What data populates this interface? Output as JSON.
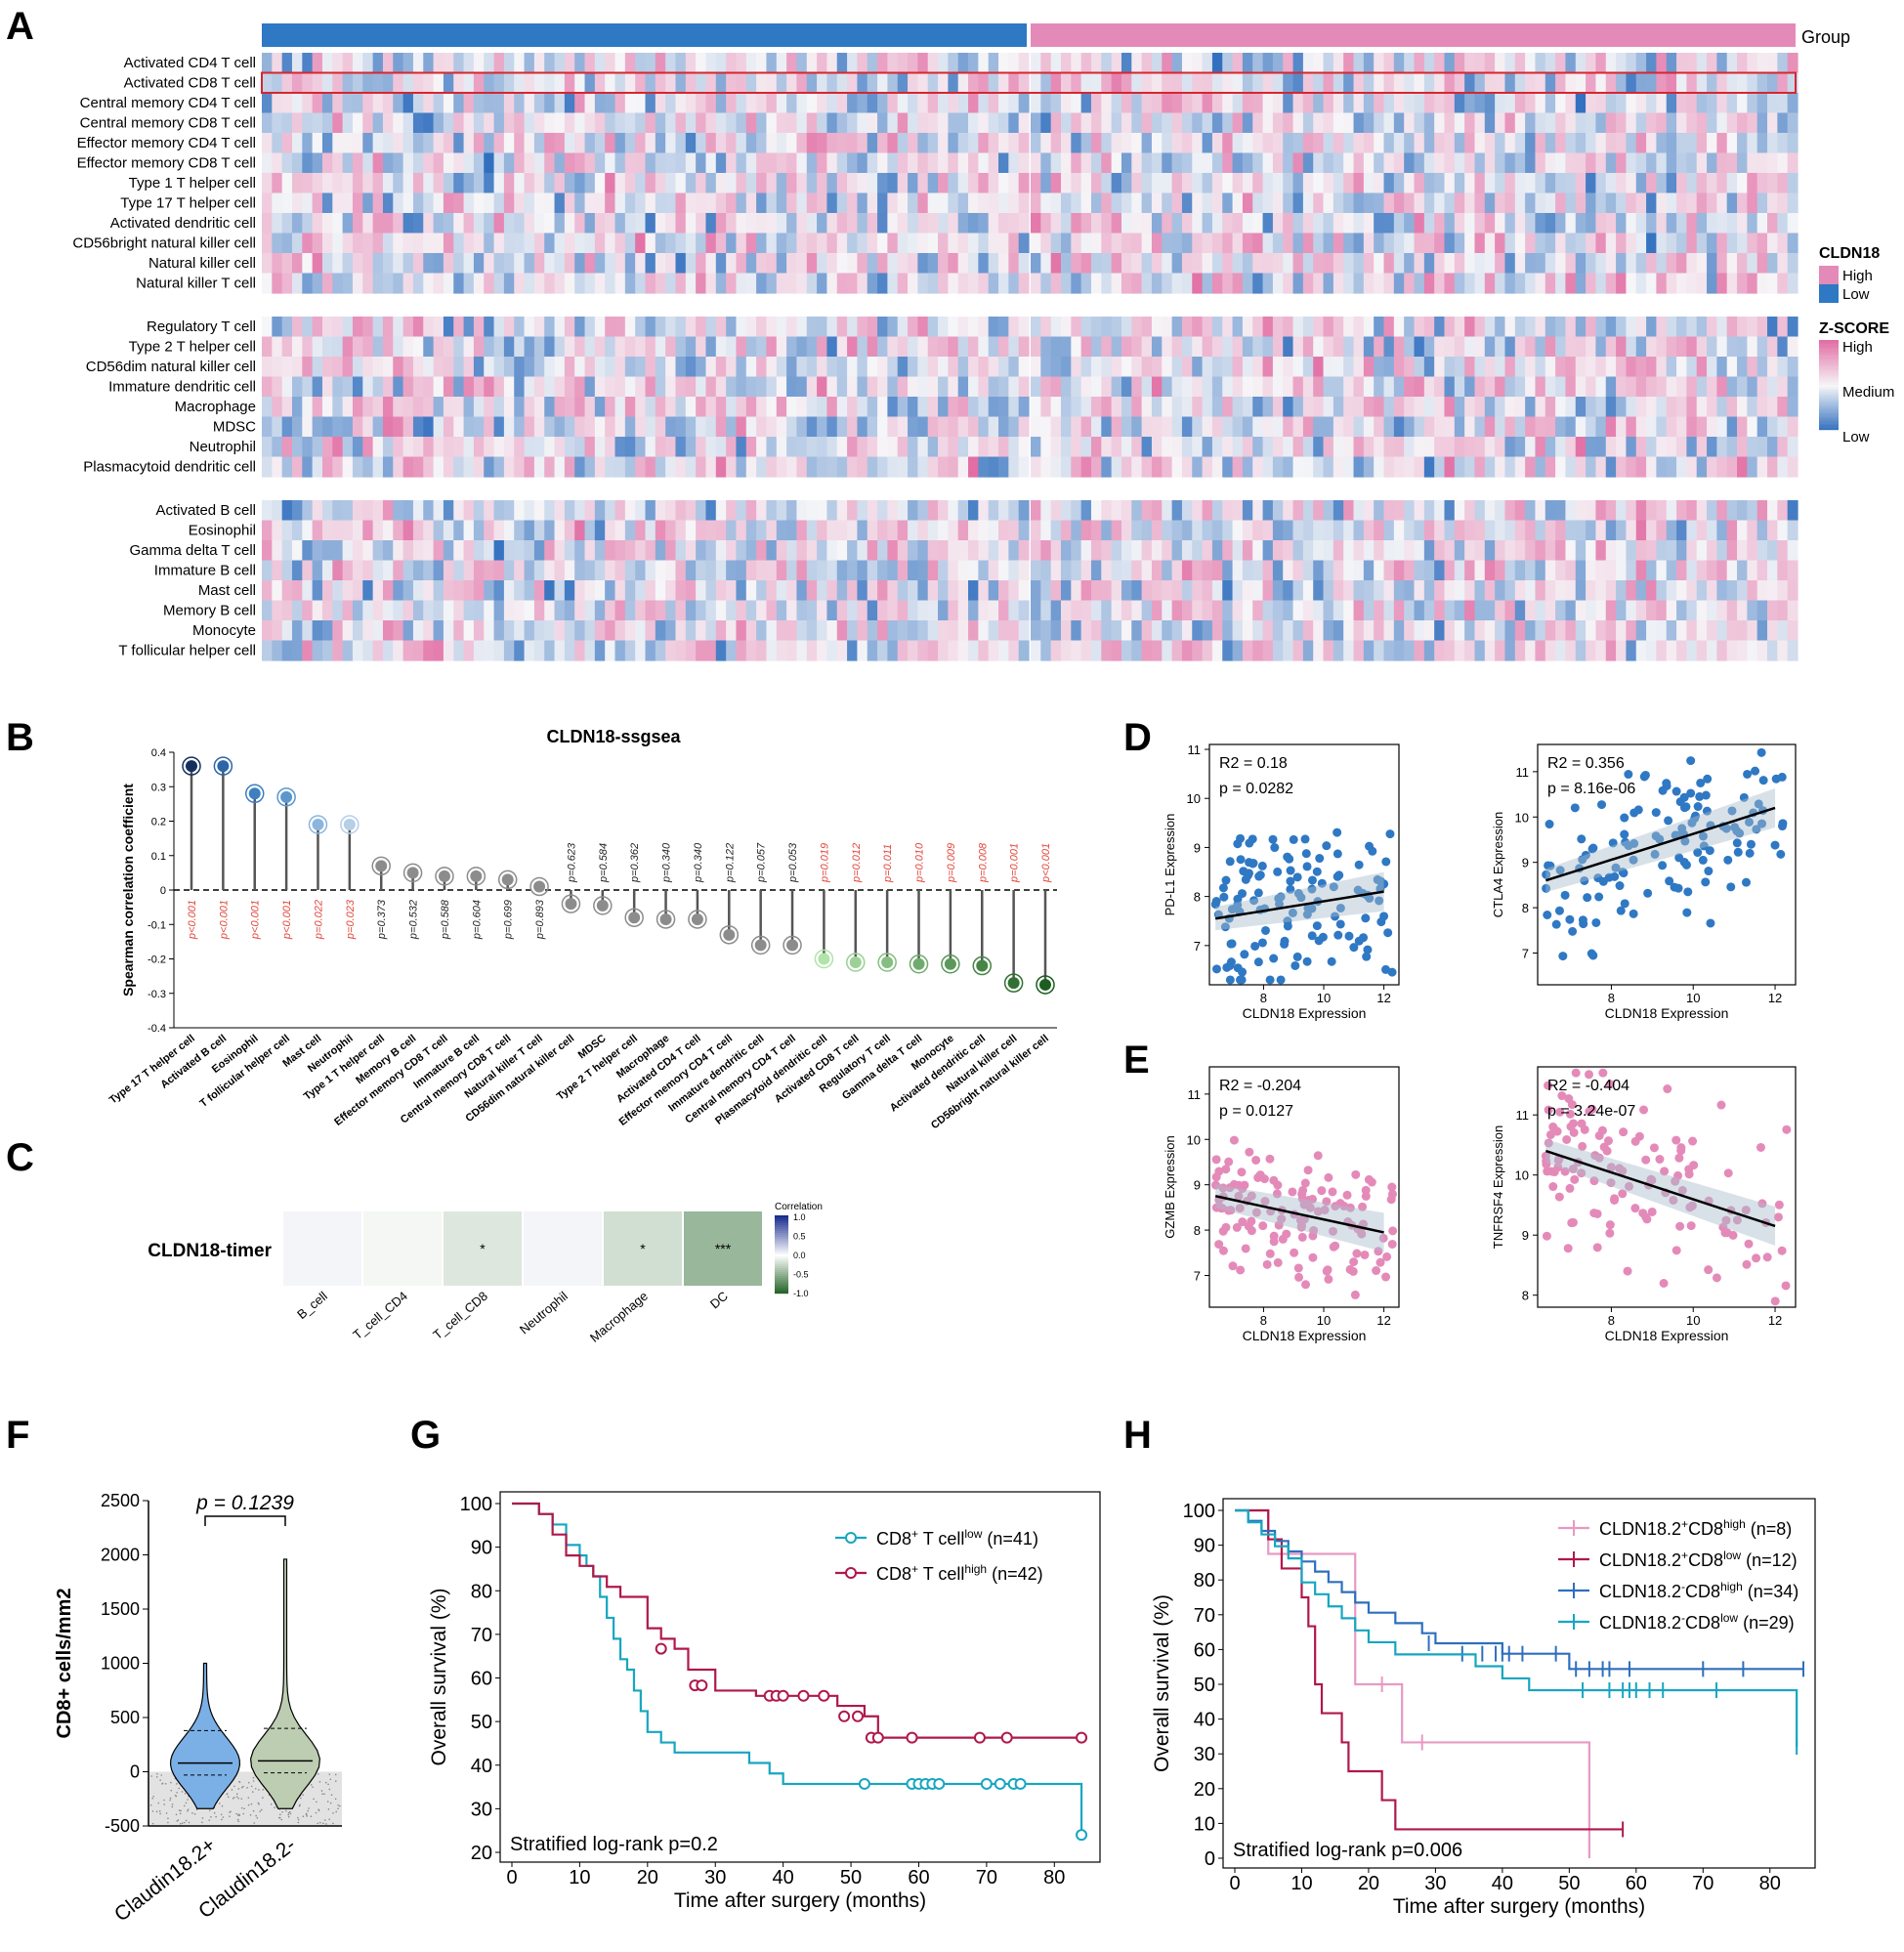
{
  "panels": {
    "letters": [
      "A",
      "B",
      "C",
      "D",
      "E",
      "F",
      "G",
      "H"
    ]
  },
  "colors": {
    "pink": "#e48ab9",
    "blue": "#2f78c4",
    "crimson": "#b0184a",
    "teal": "#16a6c1",
    "lightpink": "#e79ac3",
    "steelblue": "#2d6fbf",
    "greenDark": "#1b5e20",
    "greenMid": "#7cc576",
    "grey": "#9e9e9e",
    "red": "#e0453a"
  },
  "chart_data": [
    {
      "panel": "A",
      "type": "heatmap",
      "annotation_label": "Group",
      "legend_cldn18": {
        "title": "CLDN18",
        "items": [
          "High",
          "Low"
        ]
      },
      "legend_zscore": {
        "title": "Z-SCORE",
        "items": [
          "High",
          "Medium",
          "Low"
        ]
      },
      "row_groups": [
        [
          "Activated CD4 T cell",
          "Activated CD8 T cell",
          "Central memory CD4 T cell",
          "Central memory CD8 T cell",
          "Effector memory CD4 T cell",
          "Effector memory CD8 T cell",
          "Type 1 T helper cell",
          "Type 17 T helper cell",
          "Activated dendritic cell",
          "CD56bright natural killer cell",
          "Natural killer cell",
          "Natural killer T cell"
        ],
        [
          "Regulatory T cell",
          "Type 2 T helper cell",
          "CD56dim natural killer cell",
          "Immature dendritic cell",
          "Macrophage",
          "MDSC",
          "Neutrophil",
          "Plasmacytoid dendritic cell"
        ],
        [
          "Activated B cell",
          "Eosinophil",
          "Gamma delta T cell",
          "Immature  B cell",
          "Mast cell",
          "Memory B cell",
          "Monocyte",
          "T follicular helper cell"
        ]
      ],
      "highlighted_row": "Activated CD8 T cell",
      "columns_low": 76,
      "columns_high": 76
    },
    {
      "panel": "B",
      "type": "lollipop",
      "title": "CLDN18-ssgsea",
      "ylabel": "Spearman correlation coefficient",
      "ylim": [
        -0.4,
        0.4
      ],
      "yticks": [
        0.4,
        0.3,
        0.2,
        0.1,
        0,
        -0.1,
        -0.2,
        -0.3,
        -0.4
      ],
      "categories": [
        "Type 17 T helper cell",
        "Activated B cell",
        "Eosinophil",
        "T follicular helper cell",
        "Mast cell",
        "Neutrophil",
        "Type 1 T helper cell",
        "Memory B cell",
        "Effector memory CD8 T cell",
        "Immature  B cell",
        "Central memory CD8 T cell",
        "Natural killer T cell",
        "CD56dim natural killer cell",
        "MDSC",
        "Type 2 T helper cell",
        "Macrophage",
        "Activated CD4 T cell",
        "Effector memory CD4 T cell",
        "Immature dendritic cell",
        "Central memory CD4 T cell",
        "Plasmacytoid dendritic cell",
        "Activated CD8 T cell",
        "Regulatory T cell",
        "Gamma delta T cell",
        "Monocyte",
        "Activated dendritic cell",
        "Natural killer cell",
        "CD56bright natural killer cell"
      ],
      "values": [
        0.36,
        0.36,
        0.28,
        0.27,
        0.19,
        0.19,
        0.07,
        0.05,
        0.04,
        0.04,
        0.03,
        0.01,
        -0.04,
        -0.045,
        -0.08,
        -0.085,
        -0.085,
        -0.13,
        -0.16,
        -0.16,
        -0.2,
        -0.21,
        -0.21,
        -0.215,
        -0.215,
        -0.22,
        -0.27,
        -0.275
      ],
      "pvalues": [
        "p<0.001",
        "p<0.001",
        "p<0.001",
        "p<0.001",
        "p=0.022",
        "p=0.023",
        "p=0.373",
        "p=0.532",
        "p=0.588",
        "p=0.604",
        "p=0.699",
        "p=0.893",
        "p=0.623",
        "p=0.584",
        "p=0.362",
        "p=0.340",
        "p=0.340",
        "p=0.122",
        "p=0.057",
        "p=0.053",
        "p=0.019",
        "p=0.012",
        "p=0.011",
        "p=0.010",
        "p=0.009",
        "p=0.008",
        "p=0.001",
        "p<0.001"
      ]
    },
    {
      "panel": "C",
      "type": "heatmap",
      "title": "CLDN18-timer",
      "categories": [
        "B_cell",
        "T_cell_CD4",
        "T_cell_CD8",
        "Neutrophil",
        "Macrophage",
        "DC"
      ],
      "values": [
        0.05,
        -0.05,
        -0.15,
        0.05,
        -0.2,
        -0.45
      ],
      "stars": [
        "",
        "",
        "*",
        "",
        "*",
        "***"
      ],
      "legend_title": "Correlation",
      "legend_ticks": [
        "1.0",
        "0.5",
        "0.0",
        "-0.5",
        "-1.0"
      ]
    },
    {
      "panel": "D",
      "type": "scatter",
      "plots": [
        {
          "ylabel": "PD-L1 Expression",
          "xlabel": "CLDN18 Expression",
          "stat_r2": "R2 = 0.18",
          "stat_p": "p = 0.0282",
          "xlim": [
            6.2,
            12.5
          ],
          "ylim": [
            6.2,
            11.1
          ],
          "xticks": [
            8,
            10,
            12
          ],
          "yticks": [
            7,
            8,
            9,
            10,
            11
          ],
          "fit": [
            [
              6.4,
              7.55
            ],
            [
              12.0,
              8.1
            ]
          ],
          "color": "#2f78c4"
        },
        {
          "ylabel": "CTLA4 Expression",
          "xlabel": "CLDN18 Expression",
          "stat_r2": "R2 = 0.356",
          "stat_p": "p = 8.16e-06",
          "xlim": [
            6.2,
            12.5
          ],
          "ylim": [
            6.3,
            11.6
          ],
          "xticks": [
            8,
            10,
            12
          ],
          "yticks": [
            7,
            8,
            9,
            10,
            11
          ],
          "fit": [
            [
              6.4,
              8.6
            ],
            [
              12.0,
              10.2
            ]
          ],
          "color": "#2f78c4"
        }
      ]
    },
    {
      "panel": "E",
      "type": "scatter",
      "plots": [
        {
          "ylabel": "GZMB Expression",
          "xlabel": "CLDN18 Expression",
          "stat_r2": "R2 = -0.204",
          "stat_p": "p = 0.0127",
          "xlim": [
            6.2,
            12.5
          ],
          "ylim": [
            6.3,
            11.6
          ],
          "xticks": [
            8,
            10,
            12
          ],
          "yticks": [
            7,
            8,
            9,
            10,
            11
          ],
          "fit": [
            [
              6.4,
              8.75
            ],
            [
              12.0,
              7.95
            ]
          ],
          "color": "#e48ab9"
        },
        {
          "ylabel": "TNFRSF4 Expression",
          "xlabel": "CLDN18 Expression",
          "stat_r2": "R2 = -0.404",
          "stat_p": "p = 3.24e-07",
          "xlim": [
            6.2,
            12.5
          ],
          "ylim": [
            7.8,
            11.8
          ],
          "xticks": [
            8,
            10,
            12
          ],
          "yticks": [
            8,
            9,
            10,
            11
          ],
          "fit": [
            [
              6.4,
              10.4
            ],
            [
              12.0,
              9.15
            ]
          ],
          "color": "#e48ab9"
        }
      ]
    },
    {
      "panel": "F",
      "type": "violin",
      "ylabel": "CD8+ cells/mm2",
      "ylim": [
        -500,
        2500
      ],
      "yticks": [
        2500,
        2000,
        1500,
        1000,
        500,
        0,
        -500
      ],
      "categories": [
        "Claudin18.2+",
        "Claudin18.2-"
      ],
      "medians": [
        80,
        100
      ],
      "maxima": [
        1000,
        1960
      ],
      "pvalue": "p = 0.1239"
    },
    {
      "panel": "G",
      "type": "line",
      "xlabel": "Time after surgery (months)",
      "ylabel": "Overall survival (%)",
      "xlim": [
        0,
        85
      ],
      "ylim": [
        20,
        100
      ],
      "xticks": [
        0,
        10,
        20,
        30,
        40,
        50,
        60,
        70,
        80
      ],
      "yticks": [
        20,
        30,
        40,
        50,
        60,
        70,
        80,
        90,
        100
      ],
      "annotation": "Stratified log-rank p=0.2",
      "series": [
        {
          "name": "CD8+ T cell low",
          "label_main": "CD8",
          "label_sup1": "+",
          "label_mid": " T cell",
          "label_sup2": "low",
          "label_n": "(n=41)",
          "color": "#16a6c1",
          "x": [
            0,
            4,
            6,
            8,
            10,
            11,
            12,
            13,
            14,
            15,
            16,
            17,
            18,
            19,
            20,
            22,
            24,
            26,
            30,
            35,
            38,
            40,
            44,
            50,
            60,
            70,
            80,
            84,
            84
          ],
          "y": [
            100,
            97.6,
            95.2,
            90.5,
            88.1,
            85.7,
            83.3,
            78.6,
            73.8,
            69.0,
            64.3,
            61.9,
            57.1,
            52.4,
            47.6,
            45.2,
            42.9,
            42.9,
            42.9,
            40.5,
            38.1,
            35.7,
            35.7,
            35.7,
            35.7,
            35.7,
            35.7,
            35.7,
            24
          ],
          "censor_x": [
            52,
            59,
            60,
            61,
            62,
            63,
            70,
            72,
            74,
            75,
            84
          ],
          "censor_y": [
            35.7,
            35.7,
            35.7,
            35.7,
            35.7,
            35.7,
            35.7,
            35.7,
            35.7,
            35.7,
            24
          ]
        },
        {
          "name": "CD8+ T cell high",
          "label_main": "CD8",
          "label_sup1": "+",
          "label_mid": " T cell",
          "label_sup2": "high",
          "label_n": "(n=42)",
          "color": "#b0184a",
          "x": [
            0,
            4,
            6,
            8,
            10,
            12,
            14,
            16,
            20,
            22,
            24,
            26,
            30,
            32,
            36,
            40,
            44,
            48,
            52,
            54,
            60,
            70,
            80,
            84
          ],
          "y": [
            100,
            97.6,
            92.9,
            88.1,
            85.7,
            83.3,
            80.9,
            78.6,
            71.4,
            69.0,
            66.7,
            61.9,
            57.1,
            57.1,
            55.9,
            55.9,
            55.9,
            53.6,
            51.2,
            46.3,
            46.3,
            46.3,
            46.3,
            46.3
          ],
          "censor_x": [
            22,
            27,
            28,
            38,
            39,
            40,
            43,
            46,
            49,
            51,
            53,
            54,
            59,
            69,
            73,
            84
          ],
          "censor_y": [
            66.7,
            58.3,
            58.3,
            55.9,
            55.9,
            55.9,
            55.9,
            55.9,
            51.2,
            51.2,
            46.3,
            46.3,
            46.3,
            46.3,
            46.3,
            46.3
          ]
        }
      ]
    },
    {
      "panel": "H",
      "type": "line",
      "xlabel": "Time after surgery (months)",
      "ylabel": "Overall survival (%)",
      "xlim": [
        0,
        85
      ],
      "ylim": [
        0,
        100
      ],
      "xticks": [
        0,
        10,
        20,
        30,
        40,
        50,
        60,
        70,
        80
      ],
      "yticks": [
        0,
        10,
        20,
        30,
        40,
        50,
        60,
        70,
        80,
        90,
        100
      ],
      "annotation": "Stratified log-rank p=0.006",
      "series": [
        {
          "name": "CLDN18.2+CD8high",
          "label_main": "CLDN18.2",
          "label_sup1": "+",
          "label_mid": "CD8",
          "label_sup2": "high",
          "label_n": "(n=8)",
          "color": "#e79ac3",
          "x": [
            0,
            5,
            7,
            13,
            16,
            17,
            18,
            22,
            23,
            25,
            26,
            30,
            53,
            53
          ],
          "y": [
            100,
            87.5,
            87.5,
            87.5,
            87.5,
            87.5,
            50,
            50,
            50,
            33.3,
            33.3,
            33.3,
            33.3,
            0
          ],
          "censor_x": [
            22,
            28
          ],
          "censor_y": [
            50,
            33.3
          ]
        },
        {
          "name": "CLDN18.2+CD8low",
          "label_main": "CLDN18.2",
          "label_sup1": "+",
          "label_mid": "CD8",
          "label_sup2": "low",
          "label_n": "(n=12)",
          "color": "#b0184a",
          "x": [
            0,
            5,
            7,
            9,
            10,
            11,
            12,
            13,
            15,
            16,
            17,
            18,
            20,
            22,
            23,
            24,
            58
          ],
          "y": [
            100,
            91.7,
            83.3,
            83.3,
            75,
            66.7,
            50,
            41.7,
            41.7,
            33.3,
            25,
            25,
            25,
            16.7,
            16.7,
            8.3,
            8.3
          ],
          "censor_x": [
            58
          ],
          "censor_y": [
            8.3
          ]
        },
        {
          "name": "CLDN18.2-CD8high",
          "label_main": "CLDN18.2",
          "label_sup1": "-",
          "label_mid": "CD8",
          "label_sup2": "high",
          "label_n": "(n=34)",
          "color": "#2d6fbf",
          "x": [
            0,
            2,
            4,
            6,
            8,
            10,
            12,
            14,
            16,
            18,
            20,
            24,
            28,
            30,
            34,
            40,
            48,
            50,
            60,
            70,
            80,
            85
          ],
          "y": [
            100,
            97,
            94.1,
            91.2,
            88.2,
            85.3,
            82.4,
            79.4,
            76.5,
            73.5,
            70.6,
            67.6,
            64.7,
            61.8,
            61.8,
            58.8,
            58.8,
            54.4,
            54.4,
            54.4,
            54.4,
            54.4
          ],
          "censor_x": [
            29,
            34,
            37,
            39,
            40,
            41,
            43,
            48,
            51,
            53,
            55,
            56,
            59,
            70,
            76,
            85
          ],
          "censor_y": [
            61.8,
            58.8,
            58.8,
            58.8,
            58.8,
            58.8,
            58.8,
            58.8,
            54.4,
            54.4,
            54.4,
            54.4,
            54.4,
            54.4,
            54.4,
            54.4
          ]
        },
        {
          "name": "CLDN18.2-CD8low",
          "label_main": "CLDN18.2",
          "label_sup1": "-",
          "label_mid": "CD8",
          "label_sup2": "low",
          "label_n": "(n=29)",
          "color": "#16a6c1",
          "x": [
            0,
            2,
            4,
            6,
            8,
            10,
            12,
            14,
            16,
            18,
            20,
            24,
            30,
            36,
            40,
            44,
            50,
            60,
            70,
            84,
            84
          ],
          "y": [
            100,
            96.6,
            93.1,
            89.7,
            86.2,
            79.3,
            75.9,
            72.4,
            69,
            65.5,
            62.1,
            58.6,
            58.6,
            55.2,
            51.7,
            48.3,
            48.3,
            48.3,
            48.3,
            48.3,
            32
          ],
          "censor_x": [
            52,
            56,
            58,
            59,
            60,
            62,
            64,
            72,
            84
          ],
          "censor_y": [
            48.3,
            48.3,
            48.3,
            48.3,
            48.3,
            48.3,
            48.3,
            48.3,
            32
          ]
        }
      ]
    }
  ]
}
